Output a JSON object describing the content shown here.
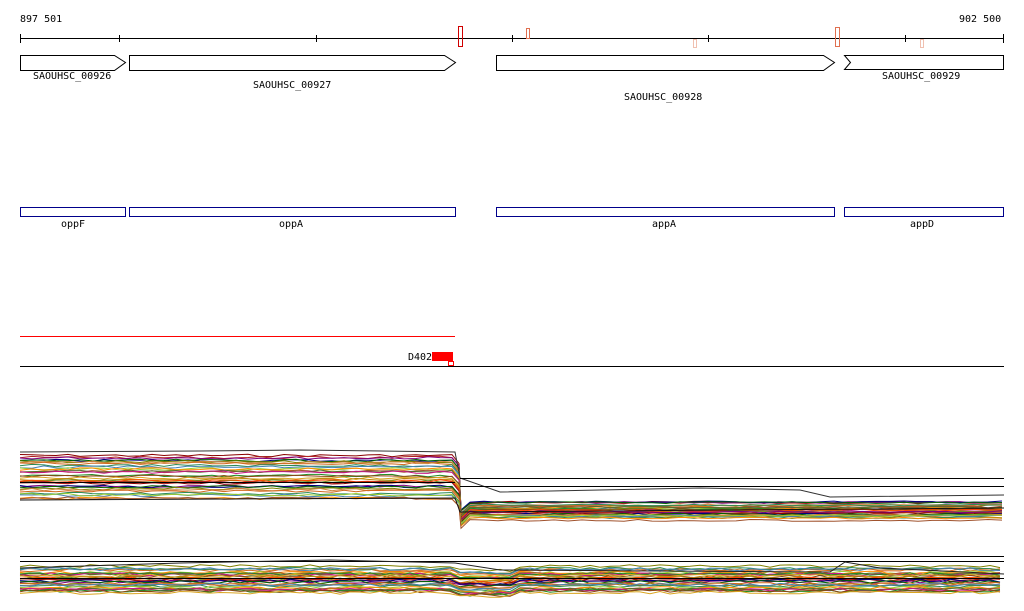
{
  "coords": {
    "start": "897 501",
    "end": "902 500"
  },
  "genes": [
    {
      "locus": "SAOUHSC_00926",
      "name": "oppF"
    },
    {
      "locus": "SAOUHSC_00927",
      "name": "oppA"
    },
    {
      "locus": "SAOUHSC_00928",
      "name": "appA"
    },
    {
      "locus": "SAOUHSC_00929",
      "name": "appD"
    }
  ],
  "feature": {
    "label": "D402"
  },
  "colors": {
    "gene_arrow": "#000000",
    "operon_box": "#00008b",
    "feature_line": "#ff0000",
    "feature_marker": "#ff0000"
  }
}
